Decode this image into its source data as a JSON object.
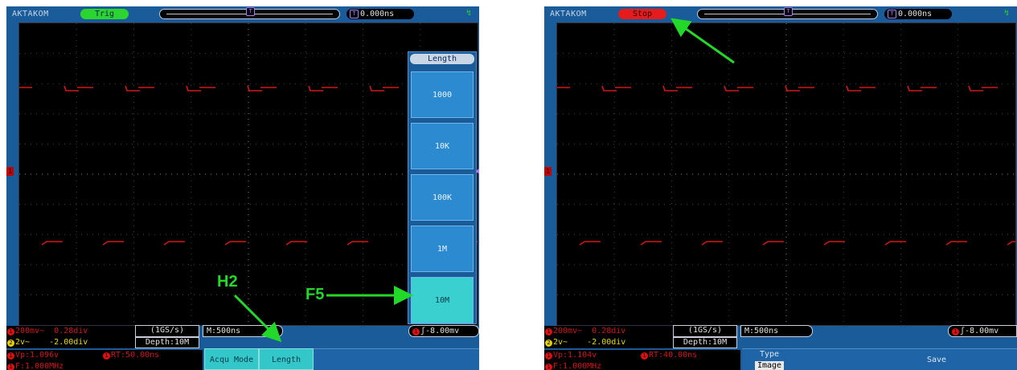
{
  "left": {
    "brand": "AKTAKOM",
    "status": "Trig",
    "trigger_position": "0.000ns",
    "trigger_marker": "T",
    "ch1_scale": "200mv~",
    "ch1_pos": "0.28div",
    "ch2_scale": "2v~",
    "ch2_pos": "-2.00div",
    "sample_rate": "(1GS/s)",
    "depth": "Depth:10M",
    "timebase": "M:500ns",
    "trigger_level": "-8.00mv",
    "vp": "Vp:1.096v",
    "rt": "RT:50.00ns",
    "freq": "F:1.000MHz",
    "softkeys": [
      "Acqu Mode",
      "Length"
    ],
    "side_menu": {
      "title": "Length",
      "options": [
        "1000",
        "10K",
        "100K",
        "1M",
        "10M"
      ],
      "selected": "10M"
    },
    "annotations": {
      "softkey_label": "H2",
      "sidekey_label": "F5"
    }
  },
  "right": {
    "brand": "AKTAKOM",
    "status": "Stop",
    "trigger_position": "0.000ns",
    "trigger_marker": "T",
    "ch1_scale": "200mv~",
    "ch1_pos": "0.28div",
    "ch2_scale": "2v~",
    "ch2_pos": "-2.00div",
    "sample_rate": "(1GS/s)",
    "depth": "Depth:10M",
    "timebase": "M:500ns",
    "trigger_level": "-8.00mv",
    "vp": "Vp:1.104v",
    "rt": "RT:40.00ns",
    "freq": "F:1.000MHz",
    "type_label": "Type",
    "type_value": "Image",
    "save_label": "Save"
  },
  "colors": {
    "ch1": "#d01818",
    "ch2": "#e8d800",
    "trig": "#b078ff",
    "accent": "#22d92a"
  }
}
